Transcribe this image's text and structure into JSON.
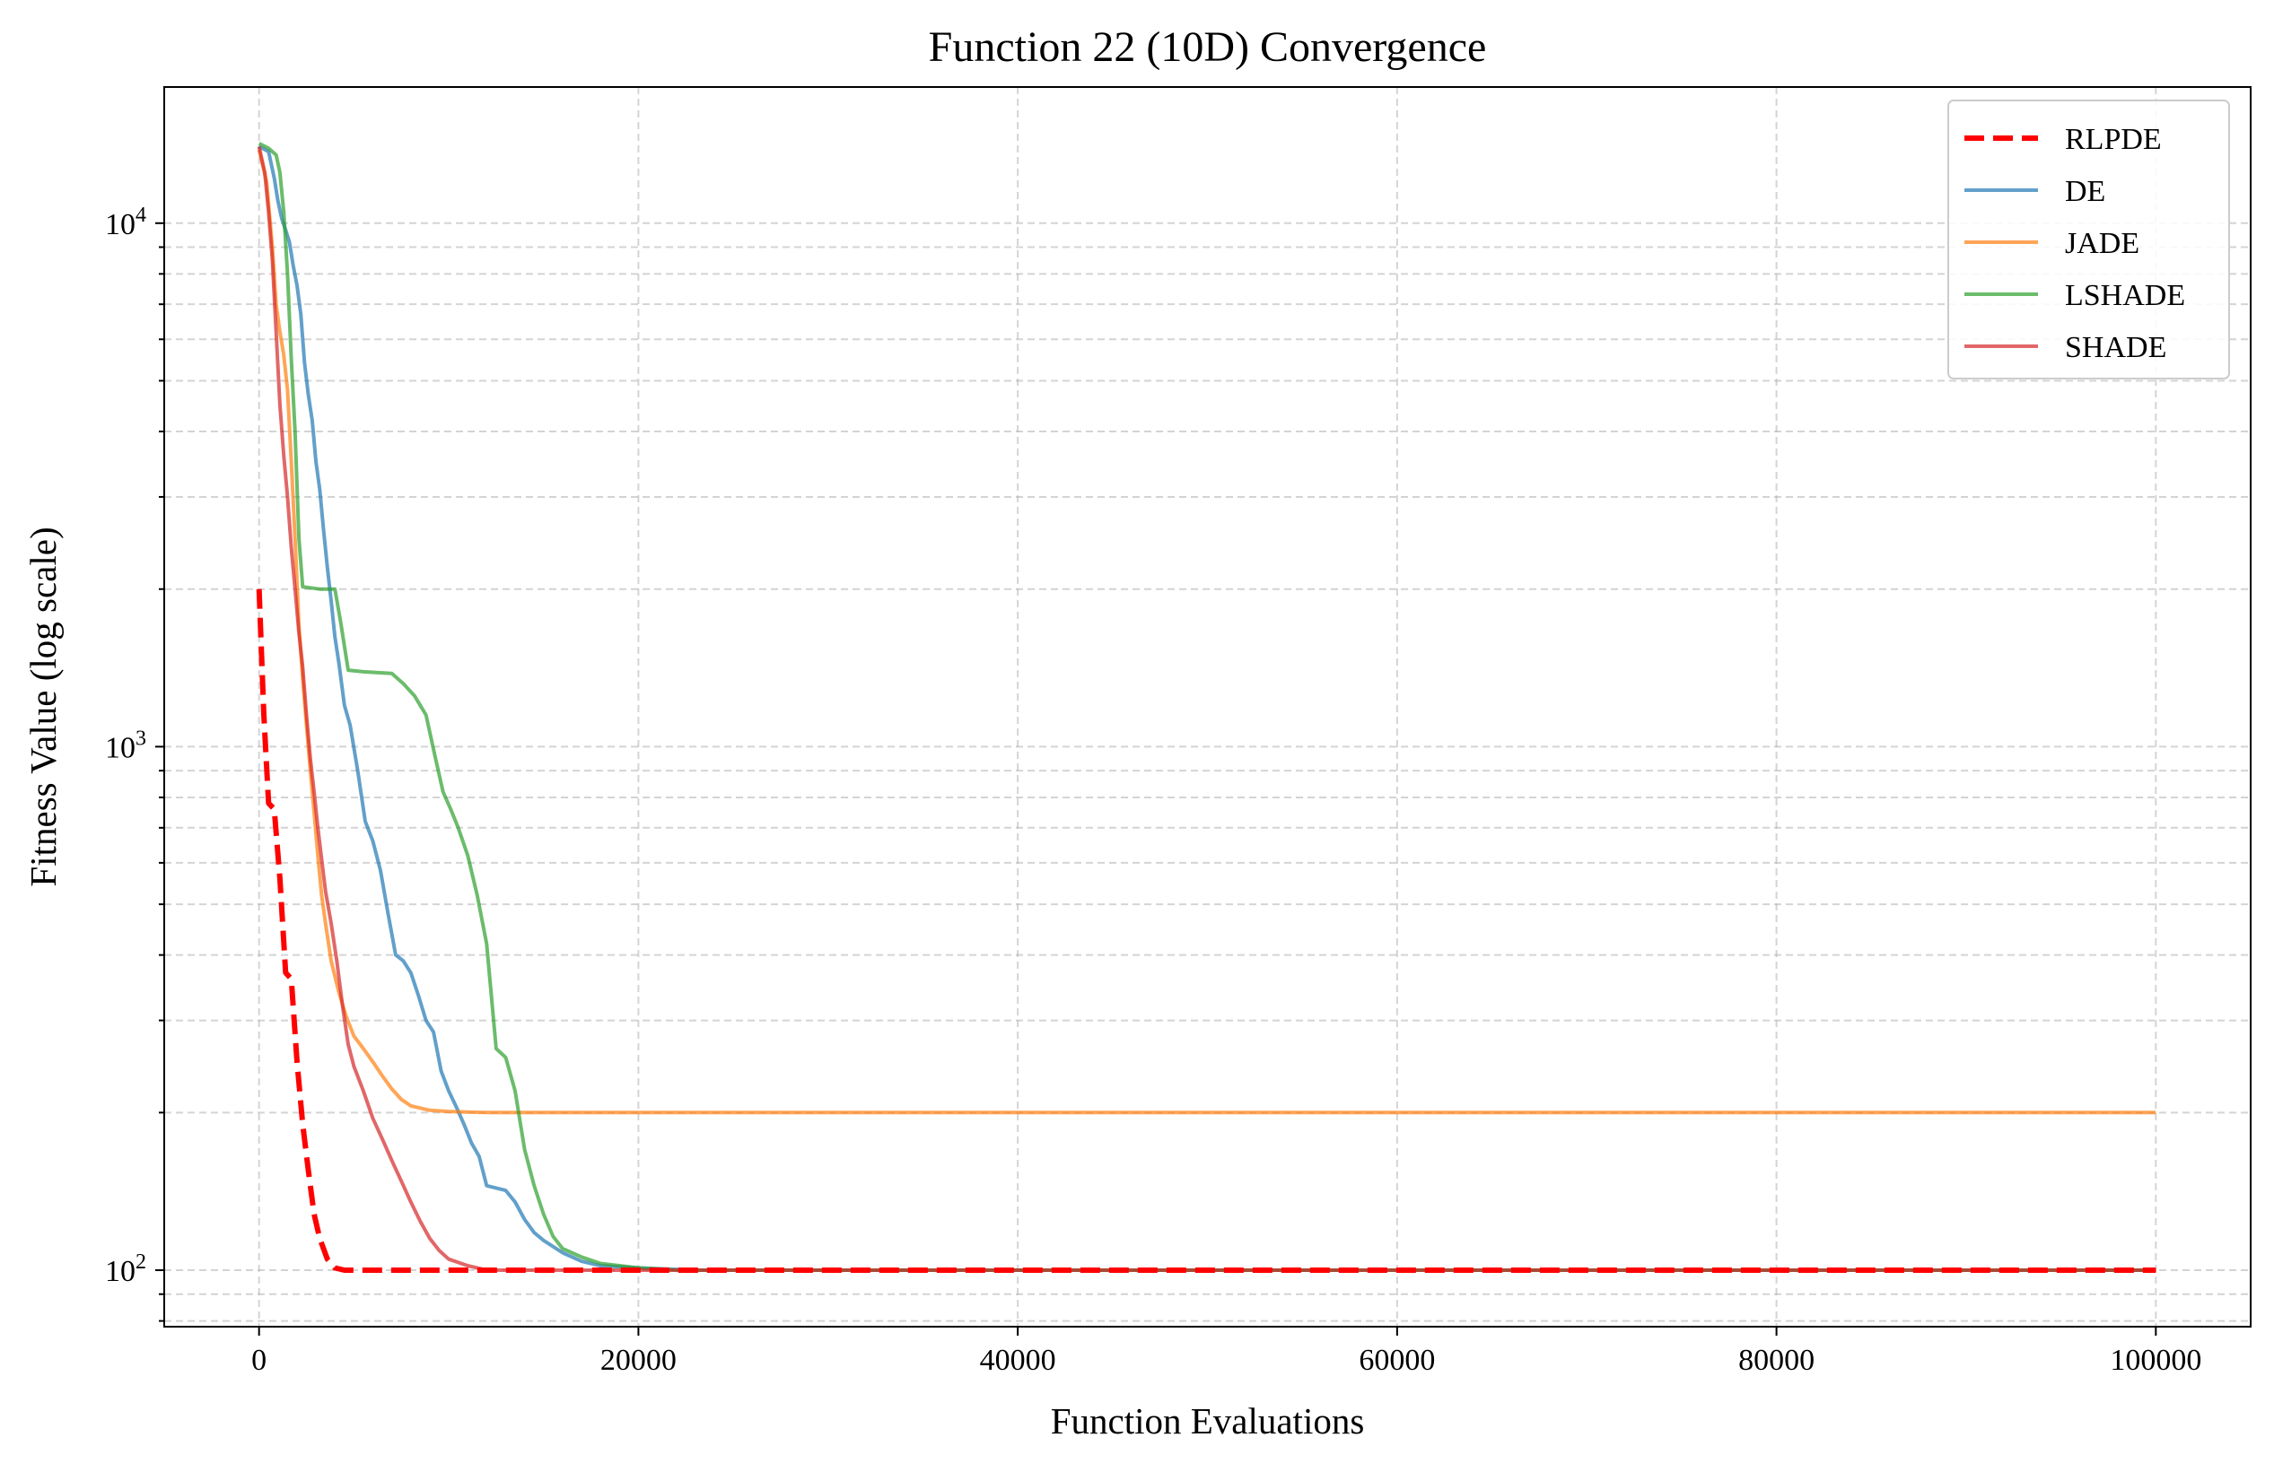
{
  "chart_data": {
    "type": "line",
    "title": "Function 22 (10D) Convergence",
    "xlabel": "Function Evaluations",
    "ylabel": "Fitness Value (log scale)",
    "xlim": [
      -5000,
      105000
    ],
    "ylim": [
      78,
      18200
    ],
    "yscale": "log",
    "x_ticks": [
      0,
      20000,
      40000,
      60000,
      80000,
      100000
    ],
    "x_tick_labels": [
      "0",
      "20000",
      "40000",
      "60000",
      "80000",
      "100000"
    ],
    "y_major_ticks": [
      100,
      1000,
      10000
    ],
    "y_tick_labels": [
      {
        "base": "10",
        "exp": "2"
      },
      {
        "base": "10",
        "exp": "3"
      },
      {
        "base": "10",
        "exp": "4"
      }
    ],
    "grid": true,
    "legend_position": "top-right",
    "series": [
      {
        "name": "RLPDE",
        "color": "#ff0000",
        "style": "dashed",
        "points": [
          [
            0,
            2000
          ],
          [
            250,
            1150
          ],
          [
            500,
            780
          ],
          [
            800,
            760
          ],
          [
            1100,
            560
          ],
          [
            1400,
            370
          ],
          [
            1700,
            360
          ],
          [
            2000,
            250
          ],
          [
            2300,
            190
          ],
          [
            2600,
            155
          ],
          [
            2900,
            128
          ],
          [
            3200,
            115
          ],
          [
            3600,
            105
          ],
          [
            4000,
            101
          ],
          [
            4500,
            100
          ],
          [
            6000,
            100
          ],
          [
            10000,
            100
          ],
          [
            20000,
            100
          ],
          [
            40000,
            100
          ],
          [
            60000,
            100
          ],
          [
            80000,
            100
          ],
          [
            100000,
            100
          ]
        ]
      },
      {
        "name": "DE",
        "color": "#1f77b4",
        "style": "solid",
        "points": [
          [
            0,
            14000
          ],
          [
            500,
            13700
          ],
          [
            800,
            12200
          ],
          [
            1000,
            11000
          ],
          [
            1200,
            10200
          ],
          [
            1400,
            9700
          ],
          [
            1600,
            9200
          ],
          [
            1800,
            8300
          ],
          [
            2000,
            7600
          ],
          [
            2200,
            6700
          ],
          [
            2400,
            5400
          ],
          [
            2600,
            4700
          ],
          [
            2800,
            4200
          ],
          [
            3000,
            3500
          ],
          [
            3200,
            3100
          ],
          [
            3400,
            2600
          ],
          [
            3600,
            2200
          ],
          [
            3800,
            1900
          ],
          [
            4000,
            1620
          ],
          [
            4200,
            1450
          ],
          [
            4500,
            1200
          ],
          [
            4800,
            1100
          ],
          [
            5200,
            900
          ],
          [
            5600,
            720
          ],
          [
            6000,
            660
          ],
          [
            6400,
            580
          ],
          [
            6800,
            480
          ],
          [
            7200,
            400
          ],
          [
            7600,
            390
          ],
          [
            8000,
            370
          ],
          [
            8400,
            335
          ],
          [
            8800,
            300
          ],
          [
            9200,
            285
          ],
          [
            9600,
            240
          ],
          [
            10000,
            220
          ],
          [
            10400,
            205
          ],
          [
            10800,
            190
          ],
          [
            11200,
            175
          ],
          [
            11600,
            165
          ],
          [
            12000,
            145
          ],
          [
            13000,
            142
          ],
          [
            13500,
            135
          ],
          [
            14000,
            125
          ],
          [
            14500,
            118
          ],
          [
            15000,
            114
          ],
          [
            16000,
            108
          ],
          [
            17000,
            104
          ],
          [
            18000,
            102
          ],
          [
            20000,
            101
          ],
          [
            23000,
            100
          ],
          [
            40000,
            100
          ],
          [
            60000,
            100
          ],
          [
            80000,
            100
          ],
          [
            100000,
            100
          ]
        ]
      },
      {
        "name": "JADE",
        "color": "#ff7f0e",
        "style": "solid",
        "points": [
          [
            0,
            13800
          ],
          [
            400,
            12000
          ],
          [
            700,
            9000
          ],
          [
            900,
            7000
          ],
          [
            1100,
            6200
          ],
          [
            1300,
            5600
          ],
          [
            1500,
            4800
          ],
          [
            1700,
            3500
          ],
          [
            1900,
            2500
          ],
          [
            2100,
            1700
          ],
          [
            2300,
            1350
          ],
          [
            2500,
            1100
          ],
          [
            2700,
            900
          ],
          [
            2900,
            750
          ],
          [
            3100,
            620
          ],
          [
            3300,
            520
          ],
          [
            3500,
            460
          ],
          [
            3800,
            390
          ],
          [
            4200,
            340
          ],
          [
            4600,
            305
          ],
          [
            5000,
            280
          ],
          [
            5500,
            265
          ],
          [
            6000,
            250
          ],
          [
            6500,
            235
          ],
          [
            7000,
            222
          ],
          [
            7500,
            212
          ],
          [
            8000,
            206
          ],
          [
            9000,
            202
          ],
          [
            10000,
            201
          ],
          [
            12000,
            200
          ],
          [
            20000,
            200
          ],
          [
            40000,
            200
          ],
          [
            60000,
            200
          ],
          [
            80000,
            200
          ],
          [
            100000,
            200
          ]
        ]
      },
      {
        "name": "LSHADE",
        "color": "#2ca02c",
        "style": "solid",
        "points": [
          [
            0,
            14200
          ],
          [
            500,
            13900
          ],
          [
            900,
            13500
          ],
          [
            1100,
            12500
          ],
          [
            1300,
            10500
          ],
          [
            1500,
            8000
          ],
          [
            1700,
            5500
          ],
          [
            1900,
            4000
          ],
          [
            2100,
            2500
          ],
          [
            2300,
            2020
          ],
          [
            3200,
            2000
          ],
          [
            4000,
            2000
          ],
          [
            4300,
            1730
          ],
          [
            4700,
            1400
          ],
          [
            5500,
            1390
          ],
          [
            7000,
            1380
          ],
          [
            7600,
            1320
          ],
          [
            8200,
            1250
          ],
          [
            8800,
            1150
          ],
          [
            9300,
            950
          ],
          [
            9700,
            820
          ],
          [
            10100,
            760
          ],
          [
            10500,
            700
          ],
          [
            11000,
            620
          ],
          [
            11500,
            520
          ],
          [
            12000,
            420
          ],
          [
            12500,
            265
          ],
          [
            13000,
            255
          ],
          [
            13500,
            220
          ],
          [
            14000,
            170
          ],
          [
            14500,
            145
          ],
          [
            15000,
            128
          ],
          [
            15500,
            116
          ],
          [
            16000,
            110
          ],
          [
            17000,
            106
          ],
          [
            18000,
            103
          ],
          [
            20000,
            101
          ],
          [
            22000,
            100
          ],
          [
            40000,
            100
          ],
          [
            60000,
            100
          ],
          [
            80000,
            100
          ],
          [
            100000,
            100
          ]
        ]
      },
      {
        "name": "SHADE",
        "color": "#d62728",
        "style": "solid",
        "points": [
          [
            0,
            14000
          ],
          [
            300,
            12500
          ],
          [
            500,
            10500
          ],
          [
            700,
            8500
          ],
          [
            900,
            6200
          ],
          [
            1100,
            4500
          ],
          [
            1300,
            3600
          ],
          [
            1500,
            3000
          ],
          [
            1700,
            2400
          ],
          [
            1900,
            2000
          ],
          [
            2100,
            1650
          ],
          [
            2300,
            1420
          ],
          [
            2500,
            1150
          ],
          [
            2700,
            950
          ],
          [
            2900,
            820
          ],
          [
            3100,
            700
          ],
          [
            3300,
            610
          ],
          [
            3500,
            530
          ],
          [
            3800,
            460
          ],
          [
            4100,
            390
          ],
          [
            4400,
            320
          ],
          [
            4700,
            270
          ],
          [
            5000,
            245
          ],
          [
            5500,
            220
          ],
          [
            6000,
            195
          ],
          [
            6500,
            178
          ],
          [
            7000,
            162
          ],
          [
            7500,
            148
          ],
          [
            8000,
            135
          ],
          [
            8500,
            124
          ],
          [
            9000,
            115
          ],
          [
            9500,
            109
          ],
          [
            10000,
            105
          ],
          [
            11000,
            102
          ],
          [
            12000,
            100
          ],
          [
            20000,
            100
          ],
          [
            40000,
            100
          ],
          [
            60000,
            100
          ],
          [
            80000,
            100
          ],
          [
            100000,
            100
          ]
        ]
      }
    ]
  }
}
